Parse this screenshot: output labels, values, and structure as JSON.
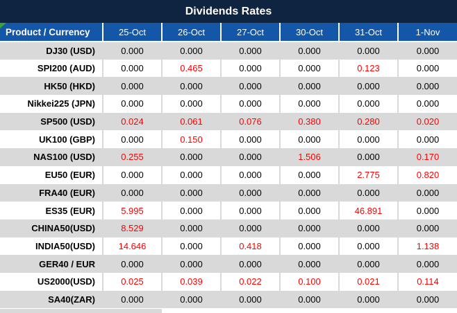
{
  "title": "Dividends Rates",
  "header": {
    "product_label": "Product / Currency",
    "dates": [
      "25-Oct",
      "26-Oct",
      "27-Oct",
      "30-Oct",
      "31-Oct",
      "1-Nov"
    ]
  },
  "rows": [
    {
      "product": "DJ30 (USD)",
      "values": [
        "0.000",
        "0.000",
        "0.000",
        "0.000",
        "0.000",
        "0.000"
      ],
      "red": [
        false,
        false,
        false,
        false,
        false,
        false
      ]
    },
    {
      "product": "SPI200 (AUD)",
      "values": [
        "0.000",
        "0.465",
        "0.000",
        "0.000",
        "0.123",
        "0.000"
      ],
      "red": [
        false,
        true,
        false,
        false,
        true,
        false
      ]
    },
    {
      "product": "HK50 (HKD)",
      "values": [
        "0.000",
        "0.000",
        "0.000",
        "0.000",
        "0.000",
        "0.000"
      ],
      "red": [
        false,
        false,
        false,
        false,
        false,
        false
      ]
    },
    {
      "product": "Nikkei225 (JPN)",
      "values": [
        "0.000",
        "0.000",
        "0.000",
        "0.000",
        "0.000",
        "0.000"
      ],
      "red": [
        false,
        false,
        false,
        false,
        false,
        false
      ]
    },
    {
      "product": "SP500 (USD)",
      "values": [
        "0.024",
        "0.061",
        "0.076",
        "0.380",
        "0.280",
        "0.020"
      ],
      "red": [
        true,
        true,
        true,
        true,
        true,
        true
      ]
    },
    {
      "product": "UK100 (GBP)",
      "values": [
        "0.000",
        "0.150",
        "0.000",
        "0.000",
        "0.000",
        "0.000"
      ],
      "red": [
        false,
        true,
        false,
        false,
        false,
        false
      ]
    },
    {
      "product": "NAS100 (USD)",
      "values": [
        "0.255",
        "0.000",
        "0.000",
        "1.506",
        "0.000",
        "0.170"
      ],
      "red": [
        true,
        false,
        false,
        true,
        false,
        true
      ]
    },
    {
      "product": "EU50 (EUR)",
      "values": [
        "0.000",
        "0.000",
        "0.000",
        "0.000",
        "2.775",
        "0.820"
      ],
      "red": [
        false,
        false,
        false,
        false,
        true,
        true
      ]
    },
    {
      "product": "FRA40 (EUR)",
      "values": [
        "0.000",
        "0.000",
        "0.000",
        "0.000",
        "0.000",
        "0.000"
      ],
      "red": [
        false,
        false,
        false,
        false,
        false,
        false
      ]
    },
    {
      "product": "ES35 (EUR)",
      "values": [
        "5.995",
        "0.000",
        "0.000",
        "0.000",
        "46.891",
        "0.000"
      ],
      "red": [
        true,
        false,
        false,
        false,
        true,
        false
      ]
    },
    {
      "product": "CHINA50(USD)",
      "values": [
        "8.529",
        "0.000",
        "0.000",
        "0.000",
        "0.000",
        "0.000"
      ],
      "red": [
        true,
        false,
        false,
        false,
        false,
        false
      ]
    },
    {
      "product": "INDIA50(USD)",
      "values": [
        "14.646",
        "0.000",
        "0.418",
        "0.000",
        "0.000",
        "1.138"
      ],
      "red": [
        true,
        false,
        true,
        false,
        false,
        true
      ]
    },
    {
      "product": "GER40 / EUR",
      "values": [
        "0.000",
        "0.000",
        "0.000",
        "0.000",
        "0.000",
        "0.000"
      ],
      "red": [
        false,
        false,
        false,
        false,
        false,
        false
      ]
    },
    {
      "product": "US2000(USD)",
      "values": [
        "0.025",
        "0.039",
        "0.022",
        "0.100",
        "0.021",
        "0.114"
      ],
      "red": [
        true,
        true,
        true,
        true,
        true,
        true
      ]
    },
    {
      "product": "SA40(ZAR)",
      "values": [
        "0.000",
        "0.000",
        "0.000",
        "0.000",
        "0.000",
        "0.000"
      ],
      "red": [
        false,
        false,
        false,
        false,
        false,
        false
      ]
    }
  ],
  "icons": {
    "corner_marker": "green-corner-triangle"
  },
  "colors": {
    "title_bar_bg": "#0e2440",
    "header_bg": "#1457a8",
    "header_text": "#ffffff",
    "row_alt_bg": "#d9d9d9",
    "row_bg": "#ffffff",
    "value_text": "#000000",
    "highlight_red": "#ff0000",
    "corner_marker_green": "#3aa03a"
  }
}
